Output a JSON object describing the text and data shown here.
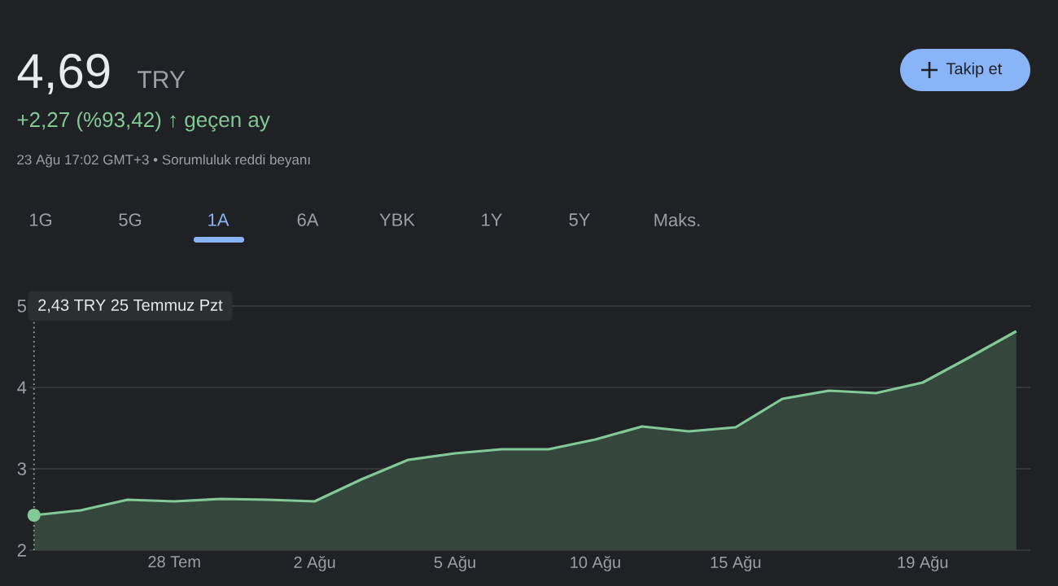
{
  "chart_data": {
    "type": "area",
    "title": "4,69",
    "annotations": [
      "TRY",
      "+2,27 (%93,42) ↑ geçen ay",
      "23 Ağu 17:02 GMT+3 • Sorumluluk reddi beyanı",
      "Takip et",
      "1G",
      "5G",
      "1A",
      "6A",
      "YBK",
      "1Y",
      "5Y",
      "Maks.",
      "2,43 TRY  25 Temmuz Pzt"
    ],
    "categories": [
      null,
      null,
      null,
      "28 Tem",
      null,
      null,
      "2 Ağu",
      null,
      null,
      "5 Ağu",
      null,
      null,
      "10 Ağu",
      null,
      null,
      "15 Ağu",
      null,
      null,
      null,
      "19 Ağu",
      null,
      null
    ],
    "series": [
      {
        "color": "#81c995",
        "values": [
          2.43,
          2.49,
          2.62,
          2.6,
          2.63,
          2.62,
          2.6,
          2.87,
          3.11,
          3.19,
          3.24,
          3.24,
          3.36,
          3.52,
          3.46,
          3.51,
          3.86,
          3.96,
          3.93,
          4.06,
          4.37,
          4.69
        ]
      }
    ],
    "ylim": [
      2,
      5
    ],
    "yticks": [
      2,
      3,
      4,
      5
    ],
    "grid": "y",
    "marker": "none",
    "line_style": "solid"
  }
}
